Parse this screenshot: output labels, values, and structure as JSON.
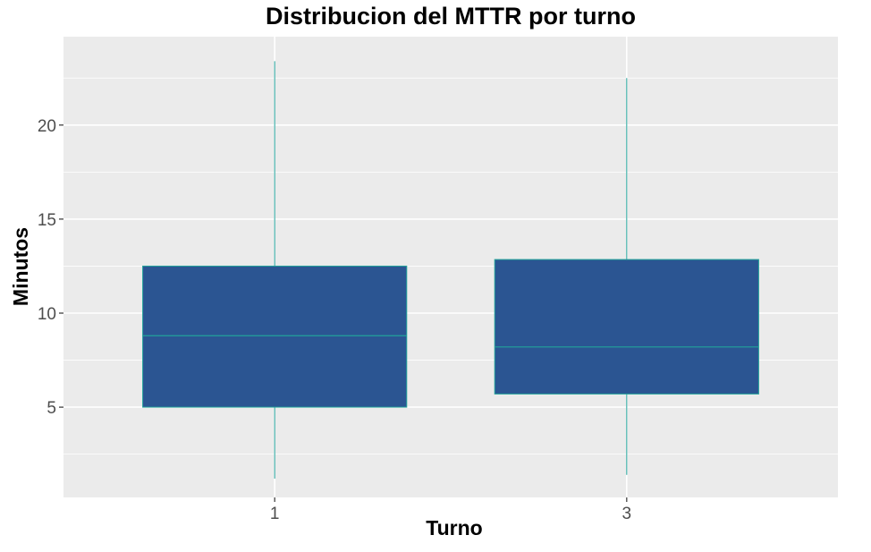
{
  "chart_data": {
    "type": "box",
    "title": "Distribucion del MTTR por turno",
    "xlabel": "Turno",
    "ylabel": "Minutos",
    "categories": [
      "1",
      "3"
    ],
    "boxes": [
      {
        "category": "1",
        "whisker_low": 1.2,
        "q1": 5.0,
        "median": 8.8,
        "q3": 12.5,
        "whisker_high": 23.4
      },
      {
        "category": "3",
        "whisker_low": 1.4,
        "q1": 5.7,
        "median": 8.2,
        "q3": 12.85,
        "whisker_high": 22.5
      }
    ],
    "ylim": [
      0.2,
      24.7
    ],
    "yticks": [
      5,
      10,
      15,
      20
    ],
    "grid": true,
    "legend": "none",
    "colors": {
      "panel_background": "#ebebeb",
      "grid": "#ffffff",
      "box_fill": "#2b5592",
      "box_line": "#22a39a"
    }
  }
}
